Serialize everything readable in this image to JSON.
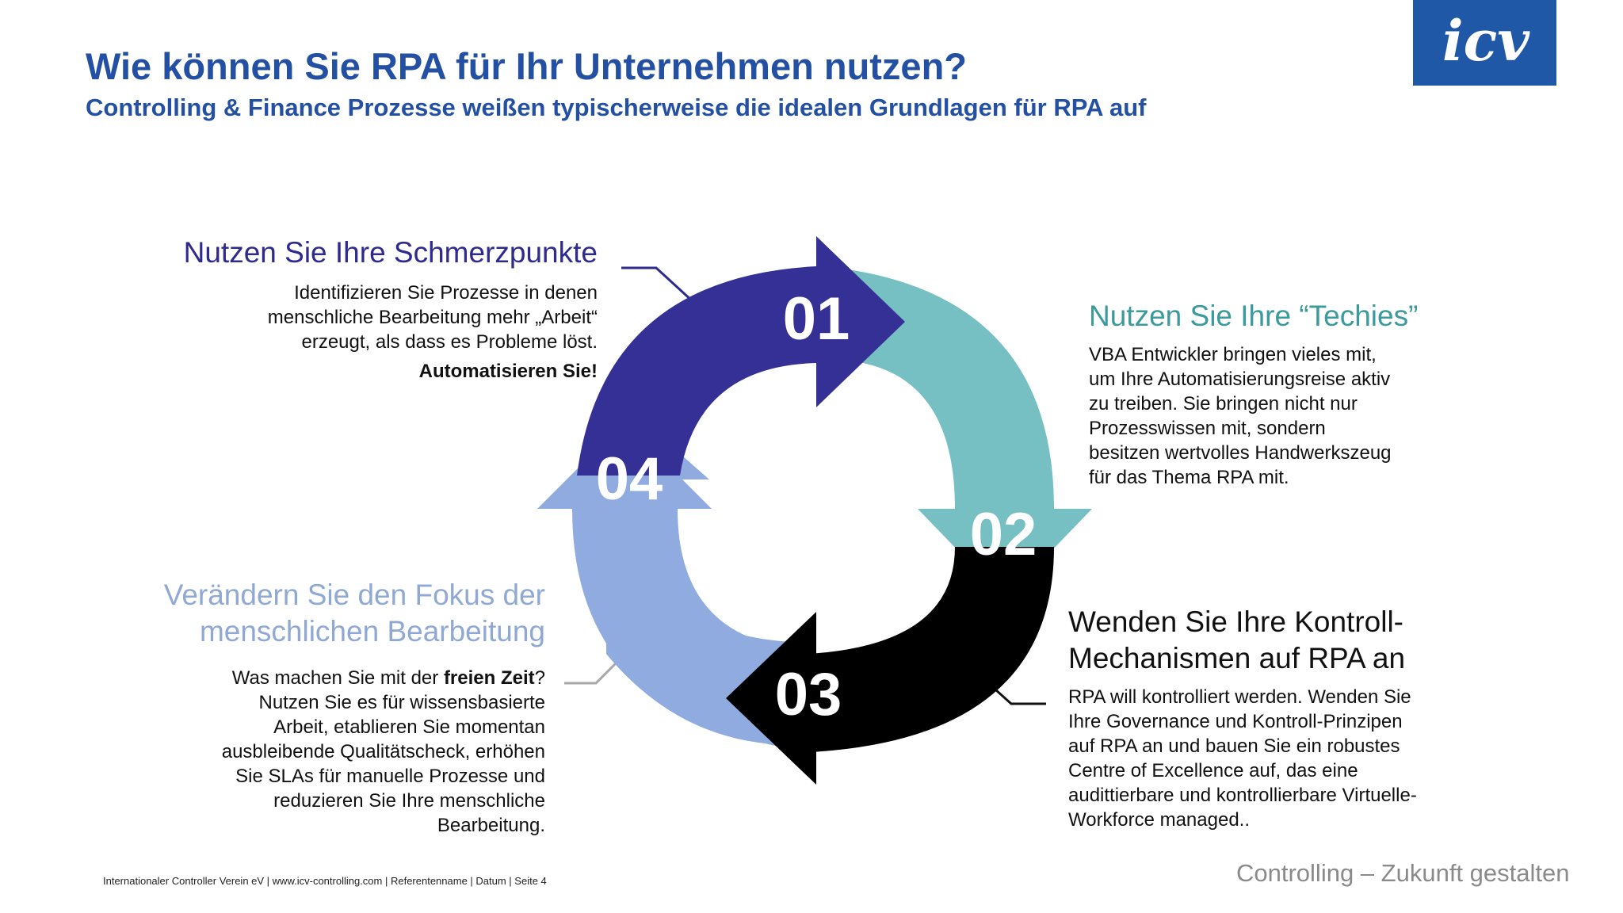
{
  "header": {
    "title": "Wie können Sie RPA für Ihr Unternehmen nutzen?",
    "subtitle": "Controlling & Finance Prozesse weißen typischerweise die idealen Grundlagen für RPA auf"
  },
  "logo": {
    "text": "icv",
    "background": "#2058a8"
  },
  "cycle": {
    "steps": [
      {
        "number": "01",
        "color": "#343096"
      },
      {
        "number": "02",
        "color": "#76c0c3"
      },
      {
        "number": "03",
        "color": "#000000"
      },
      {
        "number": "04",
        "color": "#8fabdf"
      }
    ]
  },
  "sections": {
    "s1": {
      "heading": "Nutzen Sie Ihre Schmerzpunkte",
      "lines": [
        "Identifizieren Sie Prozesse in denen",
        "menschliche Bearbeitung mehr „Arbeit“",
        "erzeugt, als dass es Probleme löst."
      ],
      "emphasis": "Automatisieren Sie!"
    },
    "s2": {
      "heading": "Nutzen Sie Ihre  “Techies”",
      "lines": [
        "VBA Entwickler bringen vieles mit,",
        "um Ihre Automatisierungsreise aktiv",
        "zu treiben. Sie bringen nicht nur",
        "Prozesswissen mit, sondern",
        "besitzen wertvolles Handwerkszeug",
        "für das Thema RPA mit."
      ]
    },
    "s3": {
      "heading_lines": [
        "Wenden Sie Ihre Kontroll-",
        "Mechanismen auf RPA an"
      ],
      "lines": [
        "RPA will kontrolliert werden. Wenden Sie",
        "Ihre Governance und Kontroll-Prinzipen",
        "auf RPA an und bauen Sie ein robustes",
        "Centre of Excellence auf, das eine",
        "audittierbare und kontrollierbare Virtuelle-",
        "Workforce managed.."
      ]
    },
    "s4": {
      "heading_lines": [
        "Verändern Sie den Fokus  der",
        "menschlichen Bearbeitung"
      ],
      "first_line_pre": "Was machen Sie mit der ",
      "first_line_bold": "freien Zeit",
      "first_line_post": "?",
      "lines": [
        "Nutzen Sie es für wissensbasierte",
        "Arbeit, etablieren Sie momentan",
        "ausbleibende Qualitätscheck, erhöhen",
        "Sie SLAs für manuelle Prozesse und",
        "reduzieren Sie Ihre menschliche",
        "Bearbeitung."
      ]
    }
  },
  "footer": {
    "left": "Internationaler Controller Verein eV | www.icv-controlling.com | Referentenname | Datum | Seite 4",
    "right": "Controlling – Zukunft gestalten"
  }
}
